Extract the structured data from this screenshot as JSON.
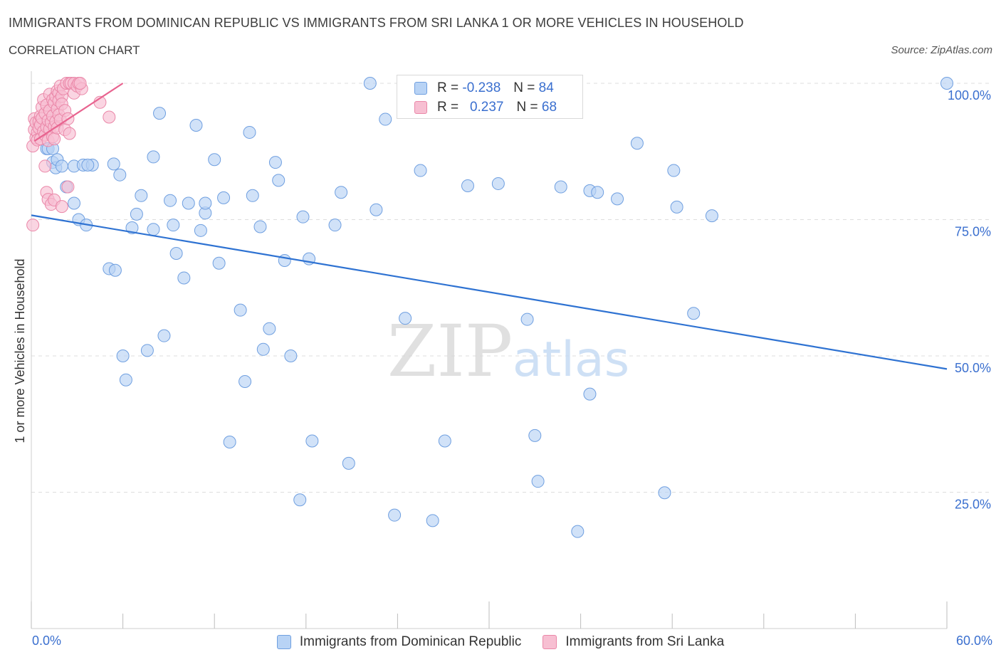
{
  "header": {
    "title": "IMMIGRANTS FROM DOMINICAN REPUBLIC VS IMMIGRANTS FROM SRI LANKA 1 OR MORE VEHICLES IN HOUSEHOLD",
    "subtitle": "CORRELATION CHART",
    "source": "Source: ZipAtlas.com"
  },
  "watermark": {
    "zip": "ZIP",
    "atlas": "atlas"
  },
  "legend": {
    "series1": {
      "r_label": "R =",
      "r_value": "-0.238",
      "n_label": "N =",
      "n_value": "84"
    },
    "series2": {
      "r_label": "R =",
      "r_value": "0.237",
      "n_label": "N =",
      "n_value": "68"
    }
  },
  "colors": {
    "blue_fill": "#b8d3f5",
    "blue_stroke": "#6f9fe0",
    "blue_line": "#2e72d2",
    "pink_fill": "#f7bfd2",
    "pink_stroke": "#ea87a8",
    "pink_line": "#e8638f",
    "tick_label": "#3a6fcf",
    "grid": "#dedede"
  },
  "chart_data": {
    "type": "scatter",
    "title": "IMMIGRANTS FROM DOMINICAN REPUBLIC VS IMMIGRANTS FROM SRI LANKA 1 OR MORE VEHICLES IN HOUSEHOLD",
    "xlabel": "",
    "ylabel": "1 or more Vehicles in Household",
    "xlim": [
      0,
      60
    ],
    "ylim": [
      0,
      100
    ],
    "x_tick_labels": [
      "0.0%",
      "60.0%"
    ],
    "y_ticks": [
      {
        "value": 100,
        "label": "100.0%"
      },
      {
        "value": 75,
        "label": "75.0%"
      },
      {
        "value": 50,
        "label": "50.0%"
      },
      {
        "value": 25,
        "label": "25.0%"
      }
    ],
    "grid": true,
    "legend_position": "bottom",
    "series": [
      {
        "name": "Immigrants from Dominican Republic",
        "color": "blue",
        "trend": {
          "x": [
            0,
            60
          ],
          "y": [
            75.8,
            47.6
          ]
        },
        "points": [
          [
            1.0,
            88.0
          ],
          [
            1.1,
            88.0
          ],
          [
            1.4,
            88.0
          ],
          [
            1.4,
            85.5
          ],
          [
            1.6,
            84.5
          ],
          [
            1.7,
            86.0
          ],
          [
            2.0,
            84.8
          ],
          [
            2.3,
            81.0
          ],
          [
            2.8,
            84.8
          ],
          [
            2.8,
            78.0
          ],
          [
            3.1,
            75.0
          ],
          [
            3.4,
            85.0
          ],
          [
            3.6,
            74.0
          ],
          [
            4.0,
            85.0
          ],
          [
            3.7,
            85.0
          ],
          [
            5.1,
            66.0
          ],
          [
            5.5,
            65.7
          ],
          [
            5.4,
            85.2
          ],
          [
            6.0,
            50.0
          ],
          [
            6.2,
            45.6
          ],
          [
            5.8,
            83.2
          ],
          [
            6.6,
            73.5
          ],
          [
            6.9,
            76.0
          ],
          [
            7.2,
            79.4
          ],
          [
            7.6,
            51.0
          ],
          [
            8.0,
            73.2
          ],
          [
            8.0,
            86.5
          ],
          [
            8.4,
            94.5
          ],
          [
            8.7,
            53.7
          ],
          [
            9.1,
            78.5
          ],
          [
            9.3,
            74.0
          ],
          [
            9.5,
            68.8
          ],
          [
            10.0,
            64.3
          ],
          [
            10.3,
            78.0
          ],
          [
            10.8,
            92.3
          ],
          [
            11.1,
            73.0
          ],
          [
            11.4,
            76.2
          ],
          [
            11.4,
            78.0
          ],
          [
            12.0,
            86.0
          ],
          [
            12.3,
            67.0
          ],
          [
            12.6,
            79.0
          ],
          [
            13.0,
            34.2
          ],
          [
            13.7,
            58.4
          ],
          [
            14.0,
            45.3
          ],
          [
            14.3,
            91.0
          ],
          [
            14.5,
            79.4
          ],
          [
            15.0,
            73.7
          ],
          [
            15.2,
            51.2
          ],
          [
            15.6,
            55.0
          ],
          [
            16.0,
            85.5
          ],
          [
            16.2,
            82.2
          ],
          [
            16.6,
            67.5
          ],
          [
            17.0,
            50.0
          ],
          [
            17.6,
            23.6
          ],
          [
            17.8,
            75.5
          ],
          [
            18.2,
            67.8
          ],
          [
            18.4,
            34.4
          ],
          [
            19.9,
            74.0
          ],
          [
            20.3,
            80.0
          ],
          [
            20.8,
            30.3
          ],
          [
            22.2,
            100.0
          ],
          [
            22.6,
            76.8
          ],
          [
            23.2,
            93.4
          ],
          [
            23.8,
            20.8
          ],
          [
            24.5,
            56.9
          ],
          [
            25.5,
            84.0
          ],
          [
            26.3,
            19.8
          ],
          [
            27.1,
            34.4
          ],
          [
            28.6,
            81.2
          ],
          [
            30.6,
            81.6
          ],
          [
            32.5,
            56.7
          ],
          [
            33.0,
            35.4
          ],
          [
            33.2,
            27.0
          ],
          [
            34.7,
            81.0
          ],
          [
            35.8,
            17.8
          ],
          [
            36.6,
            80.3
          ],
          [
            36.6,
            43.0
          ],
          [
            37.1,
            80.0
          ],
          [
            38.4,
            78.8
          ],
          [
            39.7,
            89.0
          ],
          [
            41.5,
            24.9
          ],
          [
            42.1,
            84.0
          ],
          [
            42.3,
            77.3
          ],
          [
            43.4,
            57.8
          ],
          [
            44.6,
            75.7
          ],
          [
            60.0,
            100.0
          ]
        ]
      },
      {
        "name": "Immigrants from Sri Lanka",
        "color": "pink",
        "trend": {
          "x": [
            0.2,
            6.0
          ],
          "y": [
            89.4,
            100.0
          ]
        },
        "points": [
          [
            0.1,
            74.0
          ],
          [
            0.1,
            88.5
          ],
          [
            0.2,
            91.5
          ],
          [
            0.2,
            93.5
          ],
          [
            0.3,
            90.0
          ],
          [
            0.3,
            92.8
          ],
          [
            0.4,
            91.0
          ],
          [
            0.4,
            89.6
          ],
          [
            0.5,
            93.0
          ],
          [
            0.5,
            91.8
          ],
          [
            0.6,
            94.0
          ],
          [
            0.6,
            89.8
          ],
          [
            0.6,
            92.4
          ],
          [
            0.7,
            95.6
          ],
          [
            0.7,
            93.6
          ],
          [
            0.8,
            91.2
          ],
          [
            0.8,
            97.0
          ],
          [
            0.9,
            90.5
          ],
          [
            0.9,
            94.5
          ],
          [
            0.9,
            84.8
          ],
          [
            1.0,
            92.0
          ],
          [
            1.0,
            96.0
          ],
          [
            1.0,
            80.0
          ],
          [
            1.1,
            93.2
          ],
          [
            1.1,
            89.5
          ],
          [
            1.1,
            78.7
          ],
          [
            1.2,
            95.0
          ],
          [
            1.2,
            91.6
          ],
          [
            1.2,
            98.0
          ],
          [
            1.3,
            92.8
          ],
          [
            1.3,
            77.8
          ],
          [
            1.4,
            97.0
          ],
          [
            1.4,
            94.0
          ],
          [
            1.4,
            90.2
          ],
          [
            1.5,
            96.4
          ],
          [
            1.5,
            92.0
          ],
          [
            1.5,
            89.8
          ],
          [
            1.5,
            78.6
          ],
          [
            1.6,
            97.6
          ],
          [
            1.6,
            93.0
          ],
          [
            1.7,
            98.6
          ],
          [
            1.7,
            95.3
          ],
          [
            1.7,
            91.8
          ],
          [
            1.8,
            98.2
          ],
          [
            1.8,
            94.2
          ],
          [
            1.8,
            96.8
          ],
          [
            1.9,
            99.5
          ],
          [
            1.9,
            93.3
          ],
          [
            2.0,
            97.6
          ],
          [
            2.0,
            96.2
          ],
          [
            2.0,
            77.4
          ],
          [
            2.1,
            99.0
          ],
          [
            2.2,
            95.0
          ],
          [
            2.2,
            91.5
          ],
          [
            2.3,
            100.0
          ],
          [
            2.4,
            81.0
          ],
          [
            2.4,
            93.5
          ],
          [
            2.5,
            90.8
          ],
          [
            2.5,
            100.0
          ],
          [
            2.6,
            100.0
          ],
          [
            2.8,
            100.0
          ],
          [
            2.8,
            98.2
          ],
          [
            3.0,
            99.5
          ],
          [
            3.1,
            100.0
          ],
          [
            3.3,
            99.0
          ],
          [
            3.2,
            100.0
          ],
          [
            4.5,
            96.5
          ],
          [
            5.1,
            93.8
          ]
        ]
      }
    ]
  },
  "bottom_legend": {
    "item1": "Immigrants from Dominican Republic",
    "item2": "Immigrants from Sri Lanka"
  }
}
